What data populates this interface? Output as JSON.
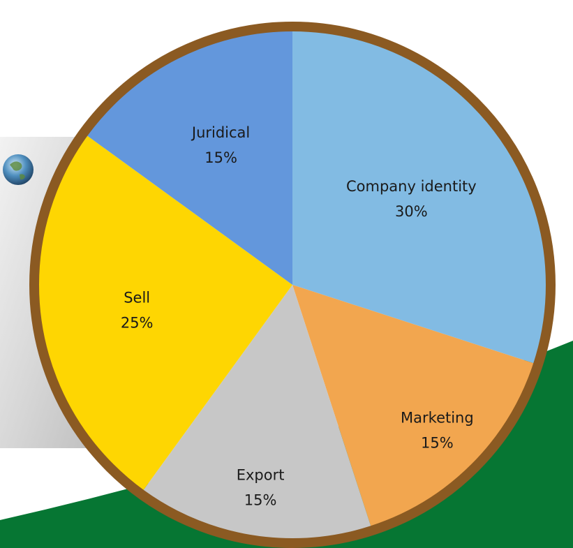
{
  "chart_data": {
    "type": "pie",
    "title": "",
    "start_angle_deg": 0,
    "direction": "clockwise",
    "slices": [
      {
        "label": "Company identity",
        "value": 30,
        "value_label": "30%",
        "color": "#82BBE3"
      },
      {
        "label": "Marketing",
        "value": 15,
        "value_label": "15%",
        "color": "#F2A64F"
      },
      {
        "label": "Export",
        "value": 15,
        "value_label": "15%",
        "color": "#C7C7C7"
      },
      {
        "label": "Sell",
        "value": 25,
        "value_label": "25%",
        "color": "#FED602"
      },
      {
        "label": "Juridical",
        "value": 15,
        "value_label": "15%",
        "color": "#6397DC"
      }
    ],
    "rim_color": "#8B5A22",
    "background": {
      "green_band_color": "#067633",
      "card_color": "#DADADA",
      "globe_icon": "globe-icon"
    }
  }
}
